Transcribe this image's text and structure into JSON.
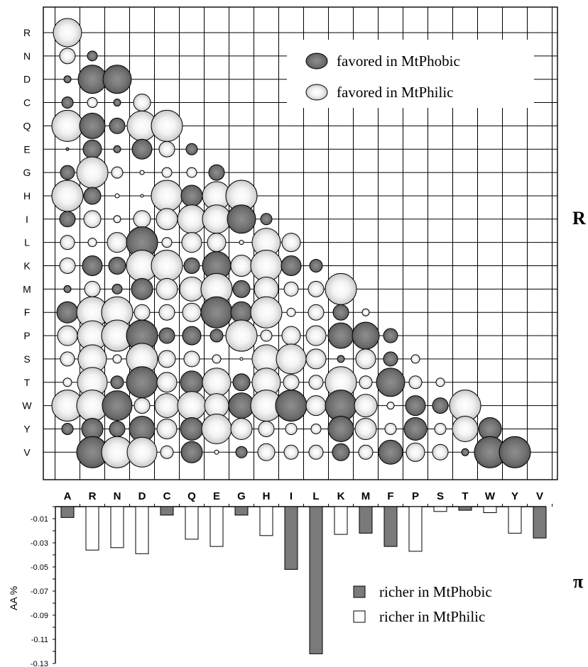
{
  "chart_data": [
    {
      "type": "scatter",
      "subtype": "bubble-matrix",
      "panel_label": "R",
      "rows": [
        "R",
        "N",
        "D",
        "C",
        "Q",
        "E",
        "G",
        "H",
        "I",
        "L",
        "K",
        "M",
        "F",
        "P",
        "S",
        "T",
        "W",
        "Y",
        "V"
      ],
      "columns": [
        "A",
        "R",
        "N",
        "D",
        "C",
        "Q",
        "E",
        "G",
        "H",
        "I",
        "L",
        "K",
        "M",
        "F",
        "P",
        "S",
        "T",
        "W",
        "Y",
        "V"
      ],
      "size_scale_note": "circle radius in px-equivalent units (relative magnitude)",
      "legend": [
        {
          "key": "phobic",
          "label": "favored in MtPhobic",
          "color": "#6e6e6e"
        },
        {
          "key": "philic",
          "label": "favored in MtPhilic",
          "color": "#e4e4e4"
        }
      ],
      "legend_position": "top-right",
      "grid": true,
      "cells": [
        [
          "R",
          0,
          "philic",
          20
        ],
        [
          "N",
          0,
          "philic",
          11
        ],
        [
          "N",
          1,
          "phobic",
          7
        ],
        [
          "D",
          0,
          "phobic",
          5
        ],
        [
          "D",
          1,
          "phobic",
          20
        ],
        [
          "D",
          2,
          "phobic",
          20
        ],
        [
          "C",
          0,
          "phobic",
          8
        ],
        [
          "C",
          1,
          "philic",
          7
        ],
        [
          "C",
          2,
          "phobic",
          5
        ],
        [
          "C",
          3,
          "philic",
          12
        ],
        [
          "Q",
          0,
          "philic",
          22
        ],
        [
          "Q",
          1,
          "phobic",
          18
        ],
        [
          "Q",
          2,
          "phobic",
          11
        ],
        [
          "Q",
          3,
          "philic",
          21
        ],
        [
          "Q",
          4,
          "philic",
          22
        ],
        [
          "E",
          0,
          "phobic",
          2
        ],
        [
          "E",
          1,
          "phobic",
          13
        ],
        [
          "E",
          2,
          "phobic",
          5
        ],
        [
          "E",
          3,
          "phobic",
          14
        ],
        [
          "E",
          4,
          "philic",
          11
        ],
        [
          "E",
          5,
          "phobic",
          8
        ],
        [
          "G",
          0,
          "phobic",
          10
        ],
        [
          "G",
          1,
          "philic",
          22
        ],
        [
          "G",
          2,
          "philic",
          8
        ],
        [
          "G",
          3,
          "philic",
          3
        ],
        [
          "G",
          4,
          "philic",
          7
        ],
        [
          "G",
          5,
          "philic",
          7
        ],
        [
          "G",
          6,
          "phobic",
          11
        ],
        [
          "H",
          0,
          "philic",
          22
        ],
        [
          "H",
          1,
          "phobic",
          12
        ],
        [
          "H",
          2,
          "philic",
          3
        ],
        [
          "H",
          3,
          "philic",
          2
        ],
        [
          "H",
          4,
          "philic",
          22
        ],
        [
          "H",
          5,
          "phobic",
          15
        ],
        [
          "H",
          6,
          "philic",
          20
        ],
        [
          "H",
          7,
          "philic",
          22
        ],
        [
          "I",
          0,
          "phobic",
          11
        ],
        [
          "I",
          1,
          "philic",
          12
        ],
        [
          "I",
          2,
          "philic",
          5
        ],
        [
          "I",
          3,
          "philic",
          12
        ],
        [
          "I",
          4,
          "philic",
          15
        ],
        [
          "I",
          5,
          "philic",
          20
        ],
        [
          "I",
          6,
          "philic",
          20
        ],
        [
          "I",
          7,
          "phobic",
          20
        ],
        [
          "I",
          8,
          "phobic",
          8
        ],
        [
          "L",
          0,
          "philic",
          10
        ],
        [
          "L",
          1,
          "philic",
          6
        ],
        [
          "L",
          2,
          "philic",
          14
        ],
        [
          "L",
          3,
          "phobic",
          22
        ],
        [
          "L",
          4,
          "philic",
          7
        ],
        [
          "L",
          5,
          "philic",
          14
        ],
        [
          "L",
          6,
          "philic",
          13
        ],
        [
          "L",
          7,
          "philic",
          3
        ],
        [
          "L",
          8,
          "philic",
          20
        ],
        [
          "L",
          9,
          "philic",
          13
        ],
        [
          "K",
          0,
          "philic",
          11
        ],
        [
          "K",
          1,
          "phobic",
          14
        ],
        [
          "K",
          2,
          "phobic",
          12
        ],
        [
          "K",
          3,
          "philic",
          22
        ],
        [
          "K",
          4,
          "philic",
          22
        ],
        [
          "K",
          5,
          "phobic",
          11
        ],
        [
          "K",
          6,
          "phobic",
          20
        ],
        [
          "K",
          7,
          "philic",
          15
        ],
        [
          "K",
          8,
          "philic",
          22
        ],
        [
          "K",
          9,
          "phobic",
          14
        ],
        [
          "K",
          10,
          "phobic",
          9
        ],
        [
          "M",
          0,
          "phobic",
          5
        ],
        [
          "M",
          1,
          "philic",
          11
        ],
        [
          "M",
          2,
          "phobic",
          7
        ],
        [
          "M",
          3,
          "phobic",
          15
        ],
        [
          "M",
          4,
          "philic",
          15
        ],
        [
          "M",
          5,
          "philic",
          17
        ],
        [
          "M",
          6,
          "philic",
          22
        ],
        [
          "M",
          7,
          "phobic",
          12
        ],
        [
          "M",
          8,
          "philic",
          17
        ],
        [
          "M",
          9,
          "philic",
          10
        ],
        [
          "M",
          10,
          "philic",
          11
        ],
        [
          "M",
          11,
          "philic",
          22
        ],
        [
          "F",
          0,
          "phobic",
          15
        ],
        [
          "F",
          1,
          "philic",
          22
        ],
        [
          "F",
          2,
          "philic",
          22
        ],
        [
          "F",
          3,
          "philic",
          11
        ],
        [
          "F",
          4,
          "philic",
          11
        ],
        [
          "F",
          5,
          "philic",
          13
        ],
        [
          "F",
          6,
          "phobic",
          22
        ],
        [
          "F",
          7,
          "phobic",
          15
        ],
        [
          "F",
          8,
          "philic",
          22
        ],
        [
          "F",
          9,
          "philic",
          6
        ],
        [
          "F",
          10,
          "philic",
          11
        ],
        [
          "F",
          11,
          "phobic",
          11
        ],
        [
          "F",
          12,
          "philic",
          5
        ],
        [
          "P",
          0,
          "philic",
          14
        ],
        [
          "P",
          1,
          "philic",
          21
        ],
        [
          "P",
          2,
          "philic",
          22
        ],
        [
          "P",
          3,
          "phobic",
          22
        ],
        [
          "P",
          4,
          "phobic",
          11
        ],
        [
          "P",
          5,
          "phobic",
          13
        ],
        [
          "P",
          6,
          "phobic",
          9
        ],
        [
          "P",
          7,
          "philic",
          22
        ],
        [
          "P",
          8,
          "philic",
          8
        ],
        [
          "P",
          9,
          "philic",
          13
        ],
        [
          "P",
          10,
          "philic",
          14
        ],
        [
          "P",
          11,
          "phobic",
          18
        ],
        [
          "P",
          12,
          "phobic",
          19
        ],
        [
          "P",
          13,
          "phobic",
          10
        ],
        [
          "S",
          0,
          "philic",
          10
        ],
        [
          "S",
          1,
          "philic",
          20
        ],
        [
          "S",
          2,
          "philic",
          6
        ],
        [
          "S",
          3,
          "philic",
          22
        ],
        [
          "S",
          4,
          "philic",
          12
        ],
        [
          "S",
          5,
          "philic",
          11
        ],
        [
          "S",
          6,
          "philic",
          6
        ],
        [
          "S",
          7,
          "philic",
          2
        ],
        [
          "S",
          8,
          "philic",
          20
        ],
        [
          "S",
          9,
          "philic",
          21
        ],
        [
          "S",
          10,
          "philic",
          14
        ],
        [
          "S",
          11,
          "phobic",
          5
        ],
        [
          "S",
          12,
          "philic",
          14
        ],
        [
          "S",
          13,
          "phobic",
          10
        ],
        [
          "S",
          14,
          "philic",
          6
        ],
        [
          "T",
          0,
          "philic",
          6
        ],
        [
          "T",
          1,
          "philic",
          21
        ],
        [
          "T",
          2,
          "phobic",
          9
        ],
        [
          "T",
          3,
          "phobic",
          22
        ],
        [
          "T",
          4,
          "philic",
          14
        ],
        [
          "T",
          5,
          "phobic",
          16
        ],
        [
          "T",
          6,
          "philic",
          20
        ],
        [
          "T",
          7,
          "phobic",
          12
        ],
        [
          "T",
          8,
          "philic",
          20
        ],
        [
          "T",
          9,
          "philic",
          11
        ],
        [
          "T",
          10,
          "philic",
          10
        ],
        [
          "T",
          11,
          "philic",
          22
        ],
        [
          "T",
          12,
          "philic",
          9
        ],
        [
          "T",
          13,
          "phobic",
          20
        ],
        [
          "T",
          14,
          "philic",
          9
        ],
        [
          "T",
          15,
          "philic",
          6
        ],
        [
          "W",
          0,
          "philic",
          22
        ],
        [
          "W",
          1,
          "philic",
          22
        ],
        [
          "W",
          2,
          "phobic",
          21
        ],
        [
          "W",
          3,
          "philic",
          11
        ],
        [
          "W",
          4,
          "philic",
          17
        ],
        [
          "W",
          5,
          "philic",
          20
        ],
        [
          "W",
          6,
          "philic",
          17
        ],
        [
          "W",
          7,
          "phobic",
          18
        ],
        [
          "W",
          8,
          "philic",
          22
        ],
        [
          "W",
          9,
          "phobic",
          22
        ],
        [
          "W",
          10,
          "philic",
          14
        ],
        [
          "W",
          11,
          "phobic",
          22
        ],
        [
          "W",
          12,
          "philic",
          16
        ],
        [
          "W",
          13,
          "philic",
          5
        ],
        [
          "W",
          14,
          "phobic",
          14
        ],
        [
          "W",
          15,
          "phobic",
          11
        ],
        [
          "W",
          16,
          "philic",
          22
        ],
        [
          "Y",
          0,
          "phobic",
          8
        ],
        [
          "Y",
          1,
          "phobic",
          15
        ],
        [
          "Y",
          2,
          "phobic",
          11
        ],
        [
          "Y",
          3,
          "phobic",
          18
        ],
        [
          "Y",
          4,
          "philic",
          14
        ],
        [
          "Y",
          5,
          "phobic",
          16
        ],
        [
          "Y",
          6,
          "philic",
          21
        ],
        [
          "Y",
          7,
          "philic",
          15
        ],
        [
          "Y",
          8,
          "philic",
          11
        ],
        [
          "Y",
          9,
          "philic",
          8
        ],
        [
          "Y",
          10,
          "philic",
          7
        ],
        [
          "Y",
          11,
          "phobic",
          18
        ],
        [
          "Y",
          12,
          "philic",
          15
        ],
        [
          "Y",
          13,
          "philic",
          8
        ],
        [
          "Y",
          14,
          "phobic",
          16
        ],
        [
          "Y",
          15,
          "philic",
          8
        ],
        [
          "Y",
          16,
          "philic",
          18
        ],
        [
          "Y",
          17,
          "phobic",
          16
        ],
        [
          "V",
          1,
          "phobic",
          22
        ],
        [
          "V",
          2,
          "philic",
          22
        ],
        [
          "V",
          3,
          "philic",
          21
        ],
        [
          "V",
          4,
          "philic",
          9
        ],
        [
          "V",
          5,
          "phobic",
          15
        ],
        [
          "V",
          6,
          "philic",
          3
        ],
        [
          "V",
          7,
          "phobic",
          8
        ],
        [
          "V",
          8,
          "philic",
          12
        ],
        [
          "V",
          9,
          "philic",
          10
        ],
        [
          "V",
          10,
          "philic",
          10
        ],
        [
          "V",
          11,
          "phobic",
          12
        ],
        [
          "V",
          12,
          "philic",
          10
        ],
        [
          "V",
          13,
          "phobic",
          17
        ],
        [
          "V",
          14,
          "philic",
          13
        ],
        [
          "V",
          15,
          "philic",
          11
        ],
        [
          "V",
          16,
          "phobic",
          5
        ],
        [
          "V",
          17,
          "phobic",
          22
        ],
        [
          "V",
          18,
          "phobic",
          22
        ]
      ]
    },
    {
      "type": "bar",
      "panel_label": "π",
      "categories": [
        "A",
        "R",
        "N",
        "D",
        "C",
        "Q",
        "E",
        "G",
        "H",
        "I",
        "L",
        "K",
        "M",
        "F",
        "P",
        "S",
        "T",
        "W",
        "Y",
        "V"
      ],
      "values": [
        -0.009,
        -0.036,
        -0.034,
        -0.039,
        -0.007,
        -0.027,
        -0.033,
        -0.007,
        -0.024,
        -0.052,
        -0.122,
        -0.023,
        -0.022,
        -0.033,
        -0.037,
        -0.004,
        -0.003,
        -0.005,
        -0.022,
        -0.026
      ],
      "groups": [
        "phobic",
        "philic",
        "philic",
        "philic",
        "phobic",
        "philic",
        "philic",
        "phobic",
        "philic",
        "phobic",
        "phobic",
        "philic",
        "phobic",
        "phobic",
        "philic",
        "philic",
        "phobic",
        "philic",
        "philic",
        "phobic"
      ],
      "ylabel": "AA %",
      "ylim": [
        -0.13,
        0
      ],
      "yticks": [
        "-0.01",
        "-0.03",
        "-0.05",
        "-0.07",
        "-0.09",
        "-0.11",
        "-0.13"
      ],
      "legend": [
        {
          "key": "phobic",
          "label": "richer in MtPhobic",
          "color": "#7a7a7a"
        },
        {
          "key": "philic",
          "label": "richer in MtPhilic",
          "color": "#ffffff"
        }
      ],
      "legend_position": "bottom-right"
    }
  ]
}
